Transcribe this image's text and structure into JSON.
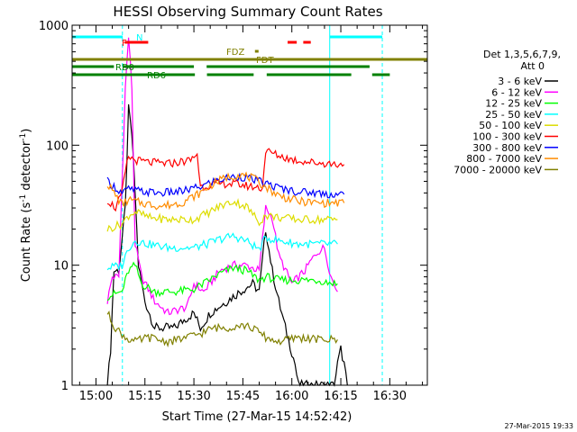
{
  "chart_data": {
    "type": "line",
    "title": "HESSI Observing Summary Count Rates",
    "xlabel": "Start Time (27-Mar-15 14:52:42)",
    "ylabel_parts": [
      "Count Rate (s",
      "-1",
      " detector",
      "-1",
      ")"
    ],
    "yscale": "log",
    "ylim": [
      1,
      1000
    ],
    "xlim_min": [
      -7.3,
      101.5
    ],
    "y_ticks": [
      {
        "v": 1,
        "label": "1"
      },
      {
        "v": 10,
        "label": "10"
      },
      {
        "v": 100,
        "label": "100"
      },
      {
        "v": 1000,
        "label": "1000"
      }
    ],
    "x_ticks": [
      {
        "m": 0,
        "label": "15:00"
      },
      {
        "m": 15,
        "label": "15:15"
      },
      {
        "m": 30,
        "label": "15:30"
      },
      {
        "m": 45,
        "label": "15:45"
      },
      {
        "m": 60,
        "label": "16:00"
      },
      {
        "m": 75,
        "label": "16:15"
      },
      {
        "m": 90,
        "label": "16:30"
      }
    ],
    "legend_header": [
      "Det 1,3,5,6,7,9,",
      "Att 0"
    ],
    "series": [
      {
        "name": "3 - 6 keV",
        "color": "#000000",
        "points": [
          [
            3.5,
            1
          ],
          [
            4.5,
            2
          ],
          [
            5.5,
            9
          ],
          [
            7,
            9
          ],
          [
            9,
            30
          ],
          [
            10,
            200
          ],
          [
            11,
            120
          ],
          [
            12,
            40
          ],
          [
            13,
            10
          ],
          [
            15,
            5
          ],
          [
            18,
            3
          ],
          [
            24,
            3
          ],
          [
            27,
            3.5
          ],
          [
            30,
            4
          ],
          [
            32,
            3
          ],
          [
            35,
            4
          ],
          [
            40,
            5
          ],
          [
            44,
            6
          ],
          [
            48,
            7
          ],
          [
            50,
            6
          ],
          [
            52,
            20
          ],
          [
            54,
            9
          ],
          [
            56,
            5
          ],
          [
            58,
            3
          ],
          [
            61,
            1.5
          ],
          [
            62,
            1
          ],
          [
            73,
            1
          ],
          [
            74,
            1.5
          ],
          [
            75,
            2
          ],
          [
            76,
            1.5
          ],
          [
            77,
            1
          ]
        ]
      },
      {
        "name": "6 - 12 keV",
        "color": "#ff00ff",
        "points": [
          [
            3.5,
            5
          ],
          [
            5,
            8
          ],
          [
            7,
            8
          ],
          [
            9,
            300
          ],
          [
            10,
            800
          ],
          [
            11,
            300
          ],
          [
            12,
            15
          ],
          [
            14,
            8
          ],
          [
            18,
            5
          ],
          [
            22,
            4
          ],
          [
            28,
            4.5
          ],
          [
            30,
            7
          ],
          [
            33,
            6
          ],
          [
            38,
            9
          ],
          [
            42,
            10
          ],
          [
            46,
            10
          ],
          [
            50,
            9
          ],
          [
            52,
            30
          ],
          [
            54,
            25
          ],
          [
            56,
            12
          ],
          [
            60,
            7
          ],
          [
            64,
            9
          ],
          [
            66,
            11
          ],
          [
            68,
            13
          ],
          [
            70,
            14
          ],
          [
            72,
            8
          ],
          [
            74,
            6
          ]
        ]
      },
      {
        "name": "12 - 25 keV",
        "color": "#00ff00",
        "points": [
          [
            3.5,
            5.5
          ],
          [
            8,
            6
          ],
          [
            10,
            9
          ],
          [
            12,
            10
          ],
          [
            14,
            7
          ],
          [
            18,
            6
          ],
          [
            24,
            6
          ],
          [
            30,
            6.3
          ],
          [
            33,
            7
          ],
          [
            38,
            8.5
          ],
          [
            42,
            9.5
          ],
          [
            46,
            9
          ],
          [
            50,
            7.5
          ],
          [
            52,
            8
          ],
          [
            56,
            7.5
          ],
          [
            62,
            7.5
          ],
          [
            68,
            7.5
          ],
          [
            74,
            7
          ]
        ]
      },
      {
        "name": "25 - 50 keV",
        "color": "#00ffff",
        "points": [
          [
            3.5,
            9.5
          ],
          [
            8,
            10
          ],
          [
            10,
            14
          ],
          [
            12,
            16
          ],
          [
            16,
            15
          ],
          [
            22,
            14
          ],
          [
            30,
            14
          ],
          [
            34,
            15
          ],
          [
            38,
            16.5
          ],
          [
            42,
            17.5
          ],
          [
            46,
            16
          ],
          [
            50,
            13.5
          ],
          [
            52,
            17
          ],
          [
            56,
            16
          ],
          [
            62,
            15
          ],
          [
            68,
            15
          ],
          [
            74,
            15
          ]
        ]
      },
      {
        "name": "50 - 100 keV",
        "color": "#dddd00",
        "points": [
          [
            3.5,
            20
          ],
          [
            8,
            22
          ],
          [
            10,
            26
          ],
          [
            12,
            28
          ],
          [
            16,
            25
          ],
          [
            22,
            24
          ],
          [
            30,
            24
          ],
          [
            34,
            27
          ],
          [
            38,
            31
          ],
          [
            42,
            34
          ],
          [
            46,
            31
          ],
          [
            50,
            23
          ],
          [
            52,
            26
          ],
          [
            56,
            25
          ],
          [
            62,
            24
          ],
          [
            68,
            24
          ],
          [
            74,
            24
          ]
        ]
      },
      {
        "name": "100 - 300 keV",
        "color": "#ff0000",
        "points": [
          [
            3.5,
            35
          ],
          [
            6,
            30
          ],
          [
            8,
            40
          ],
          [
            9,
            60
          ],
          [
            10,
            80
          ],
          [
            12,
            75
          ],
          [
            16,
            72
          ],
          [
            22,
            70
          ],
          [
            29,
            75
          ],
          [
            31,
            85
          ],
          [
            32,
            45
          ],
          [
            36,
            47
          ],
          [
            40,
            48
          ],
          [
            44,
            47
          ],
          [
            48,
            45
          ],
          [
            51,
            44
          ],
          [
            52,
            90
          ],
          [
            56,
            82
          ],
          [
            60,
            76
          ],
          [
            66,
            72
          ],
          [
            72,
            70
          ],
          [
            76,
            69
          ]
        ]
      },
      {
        "name": "300 - 800 keV",
        "color": "#0000ff",
        "points": [
          [
            3.5,
            50
          ],
          [
            8,
            40
          ],
          [
            10,
            43
          ],
          [
            14,
            41
          ],
          [
            20,
            40
          ],
          [
            26,
            41
          ],
          [
            32,
            45
          ],
          [
            36,
            50
          ],
          [
            40,
            53
          ],
          [
            44,
            55
          ],
          [
            48,
            52
          ],
          [
            52,
            48
          ],
          [
            56,
            44
          ],
          [
            62,
            41
          ],
          [
            68,
            40
          ],
          [
            72,
            39
          ],
          [
            76,
            39
          ]
        ]
      },
      {
        "name": "800 - 7000 keV",
        "color": "#ff8c00",
        "points": [
          [
            3.5,
            48
          ],
          [
            8,
            32
          ],
          [
            10,
            35
          ],
          [
            14,
            33
          ],
          [
            20,
            31
          ],
          [
            26,
            33
          ],
          [
            32,
            40
          ],
          [
            36,
            48
          ],
          [
            40,
            54
          ],
          [
            44,
            57
          ],
          [
            48,
            53
          ],
          [
            52,
            45
          ],
          [
            56,
            38
          ],
          [
            62,
            34
          ],
          [
            68,
            33
          ],
          [
            72,
            33
          ],
          [
            76,
            33
          ]
        ]
      },
      {
        "name": "7000 - 20000 keV",
        "color": "#808000",
        "points": [
          [
            3.5,
            4
          ],
          [
            6,
            3
          ],
          [
            9,
            2.5
          ],
          [
            12,
            2.3
          ],
          [
            16,
            2.5
          ],
          [
            22,
            2.3
          ],
          [
            28,
            2.5
          ],
          [
            32,
            2.7
          ],
          [
            36,
            3
          ],
          [
            40,
            3
          ],
          [
            44,
            3.2
          ],
          [
            48,
            3
          ],
          [
            52,
            2.5
          ],
          [
            56,
            2.3
          ],
          [
            62,
            2.5
          ],
          [
            68,
            2.4
          ],
          [
            74,
            2.4
          ]
        ]
      }
    ],
    "vlines": [
      {
        "m": -7.3,
        "dash": false,
        "color": "#00ffff"
      },
      {
        "m": 8.1,
        "dash": true,
        "color": "#00ffff"
      },
      {
        "m": 71.6,
        "dash": false,
        "color": "#00ffff"
      },
      {
        "m": 87.7,
        "dash": true,
        "color": "#00ffff"
      }
    ],
    "flag_bars": [
      {
        "label": "N",
        "color": "#00ffff",
        "segments": [
          [
            -7.3,
            8.2
          ],
          [
            71.6,
            87.7
          ]
        ]
      },
      {
        "label": "F",
        "color": "#ff0000",
        "segments": [
          [
            8.8,
            16.0
          ],
          [
            58.7,
            61.5
          ],
          [
            63.5,
            65.8
          ]
        ]
      },
      {
        "label": "FDZ",
        "color": "#808000",
        "segments": [
          [
            48.7,
            49.8
          ]
        ]
      },
      {
        "label": "FDT",
        "color": "#808000",
        "segments": [
          [
            -7.3,
            101.5
          ]
        ]
      },
      {
        "label": "RD0",
        "color": "#008000",
        "segments": [
          [
            -7.3,
            5.5
          ],
          [
            8.3,
            30.0
          ],
          [
            33.9,
            83.8
          ]
        ]
      },
      {
        "label": "RD6",
        "color": "#008000",
        "segments": [
          [
            -7.3,
            30.3
          ],
          [
            34.0,
            48.3
          ],
          [
            52.3,
            78.2
          ],
          [
            84.6,
            90.0
          ]
        ]
      }
    ],
    "footer_timestamp": "27-Mar-2015 19:33"
  }
}
